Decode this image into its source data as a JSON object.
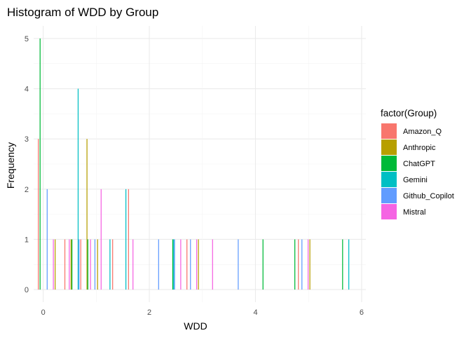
{
  "chart_data": {
    "type": "bar",
    "title": "Histogram of WDD by Group",
    "xlabel": "WDD",
    "ylabel": "Frequency",
    "xlim": [
      -0.18,
      6.08
    ],
    "ylim": [
      -0.25,
      5.25
    ],
    "xticks": [
      0,
      2,
      4,
      6
    ],
    "yticks": [
      0,
      1,
      2,
      3,
      4,
      5
    ],
    "grid": true,
    "legend": {
      "title": "factor(Group)",
      "position": "right"
    },
    "bin_width": 0.1,
    "series": [
      {
        "name": "Amazon_Q",
        "color": "#F8766D",
        "points": [
          [
            -0.05,
            3
          ],
          [
            0.45,
            1
          ],
          [
            0.75,
            1
          ],
          [
            1.35,
            1
          ],
          [
            1.65,
            2
          ],
          [
            2.75,
            1
          ],
          [
            4.85,
            1
          ]
        ]
      },
      {
        "name": "Anthropic",
        "color": "#B79F00",
        "points": [
          [
            0.25,
            1
          ],
          [
            0.55,
            1
          ],
          [
            0.85,
            3
          ],
          [
            1.05,
            1
          ],
          [
            2.95,
            1
          ],
          [
            5.05,
            1
          ]
        ]
      },
      {
        "name": "ChatGPT",
        "color": "#00BA38",
        "points": [
          [
            -0.05,
            5
          ],
          [
            0.55,
            1
          ],
          [
            0.85,
            1
          ],
          [
            2.45,
            1
          ],
          [
            4.15,
            1
          ],
          [
            4.75,
            1
          ],
          [
            5.65,
            1
          ]
        ]
      },
      {
        "name": "Gemini",
        "color": "#00BFC4",
        "points": [
          [
            0.65,
            4
          ],
          [
            1.25,
            1
          ],
          [
            1.55,
            2
          ],
          [
            2.45,
            1
          ],
          [
            5.75,
            1
          ]
        ]
      },
      {
        "name": "Github_Copilot",
        "color": "#619CFF",
        "points": [
          [
            0.05,
            2
          ],
          [
            0.65,
            1
          ],
          [
            0.95,
            1
          ],
          [
            2.15,
            1
          ],
          [
            2.45,
            1
          ],
          [
            2.75,
            1
          ],
          [
            3.65,
            1
          ],
          [
            4.85,
            1
          ]
        ]
      },
      {
        "name": "Mistral",
        "color": "#F564E3",
        "points": [
          [
            0.15,
            1
          ],
          [
            0.45,
            1
          ],
          [
            0.85,
            1
          ],
          [
            1.05,
            2
          ],
          [
            1.65,
            1
          ],
          [
            2.55,
            1
          ],
          [
            2.85,
            1
          ],
          [
            3.15,
            1
          ],
          [
            4.95,
            1
          ]
        ]
      }
    ]
  }
}
